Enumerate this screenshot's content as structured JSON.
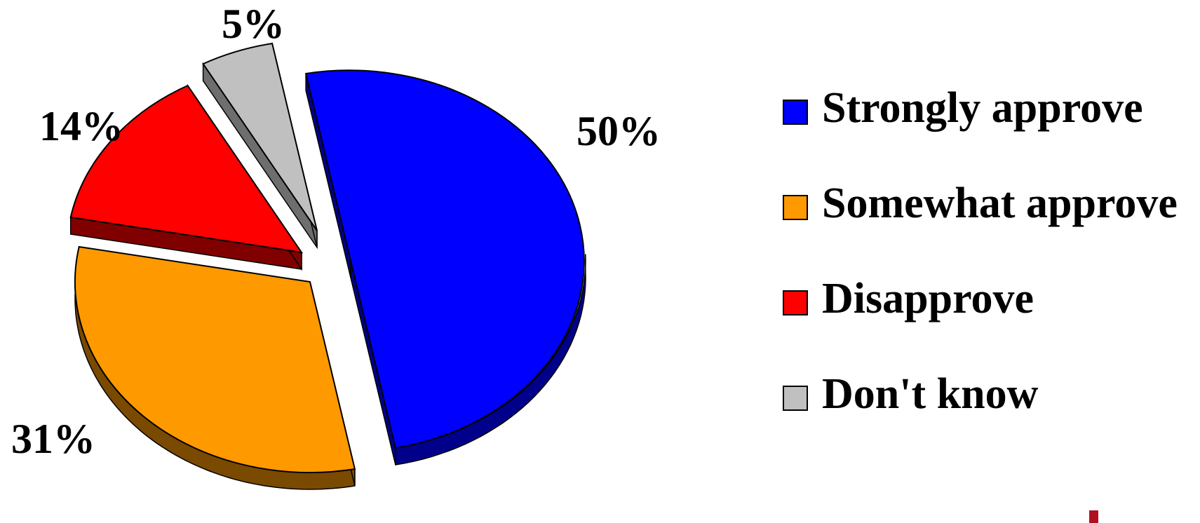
{
  "chart_data": {
    "type": "pie",
    "variant": "3d-exploded",
    "title": "",
    "slices": [
      {
        "label": "Strongly approve",
        "value": 50,
        "display": "50%",
        "color": "#0000FF",
        "side_color": "#00008B"
      },
      {
        "label": "Somewhat approve",
        "value": 31,
        "display": "31%",
        "color": "#FF9900",
        "side_color": "#7A4A00"
      },
      {
        "label": "Disapprove",
        "value": 14,
        "display": "14%",
        "color": "#FF0000",
        "side_color": "#800000"
      },
      {
        "label": "Don't know",
        "value": 5,
        "display": "5%",
        "color": "#C0C0C0",
        "side_color": "#6E6E6E"
      }
    ],
    "legend_position": "right"
  }
}
